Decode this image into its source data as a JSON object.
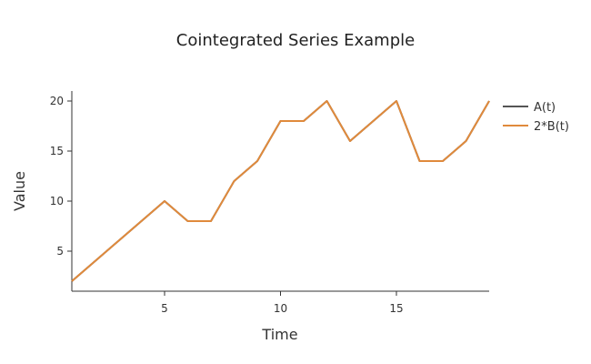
{
  "chart_data": {
    "type": "line",
    "title": "Cointegrated Series Example",
    "xlabel": "Time",
    "ylabel": "Value",
    "x": [
      1,
      2,
      3,
      4,
      5,
      6,
      7,
      8,
      9,
      10,
      11,
      12,
      13,
      14,
      15,
      16,
      17,
      18,
      19
    ],
    "xlim": [
      1,
      19
    ],
    "ylim": [
      1,
      21
    ],
    "xticks": [
      5,
      10,
      15
    ],
    "yticks": [
      5,
      10,
      15,
      20
    ],
    "grid": false,
    "legend_position": "top-right",
    "series": [
      {
        "name": "A(t)",
        "color": "#555555",
        "values": [
          2,
          4,
          6,
          8,
          10,
          8,
          8,
          12,
          14,
          18,
          18,
          20,
          16,
          18,
          20,
          14,
          14,
          16,
          20
        ]
      },
      {
        "name": "2*B(t)",
        "color": "#E08A3C",
        "values": [
          2,
          4,
          6,
          8,
          10,
          8,
          8,
          12,
          14,
          18,
          18,
          20,
          16,
          18,
          20,
          14,
          14,
          16,
          20
        ]
      }
    ]
  }
}
